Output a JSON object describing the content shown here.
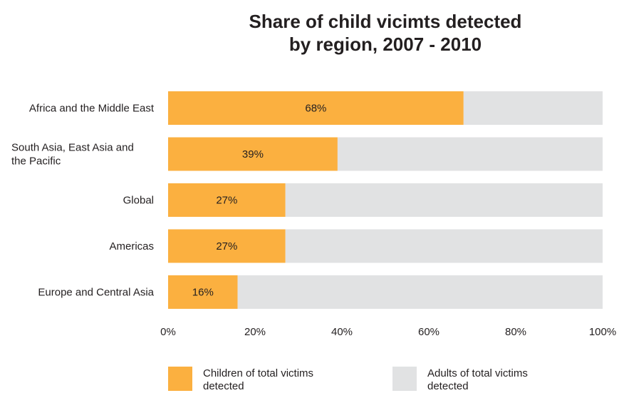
{
  "chart_data": {
    "type": "bar",
    "orientation": "horizontal",
    "stacked": true,
    "title_lines": [
      "Share of child vicimts detected",
      "by region, 2007 - 2010"
    ],
    "categories": [
      {
        "lines": [
          "Africa and the Middle East"
        ]
      },
      {
        "lines": [
          "South Asia, East Asia and",
          "the Pacific"
        ]
      },
      {
        "lines": [
          "Global"
        ]
      },
      {
        "lines": [
          "Americas"
        ]
      },
      {
        "lines": [
          "Europe and Central Asia"
        ]
      }
    ],
    "series": [
      {
        "name_lines": [
          "Children of total victims",
          "detected"
        ],
        "color": "#fbb040",
        "values": [
          68,
          39,
          27,
          27,
          16
        ]
      },
      {
        "name_lines": [
          "Adults of total victims",
          "detected"
        ],
        "color": "#e1e2e3",
        "values": [
          32,
          61,
          73,
          73,
          84
        ]
      }
    ],
    "data_labels": [
      "68%",
      "39%",
      "27%",
      "27%",
      "16%"
    ],
    "x_ticks": [
      "0%",
      "20%",
      "40%",
      "60%",
      "80%",
      "100%"
    ],
    "xlim": [
      0,
      100
    ],
    "grid": false,
    "legend_position": "bottom"
  }
}
